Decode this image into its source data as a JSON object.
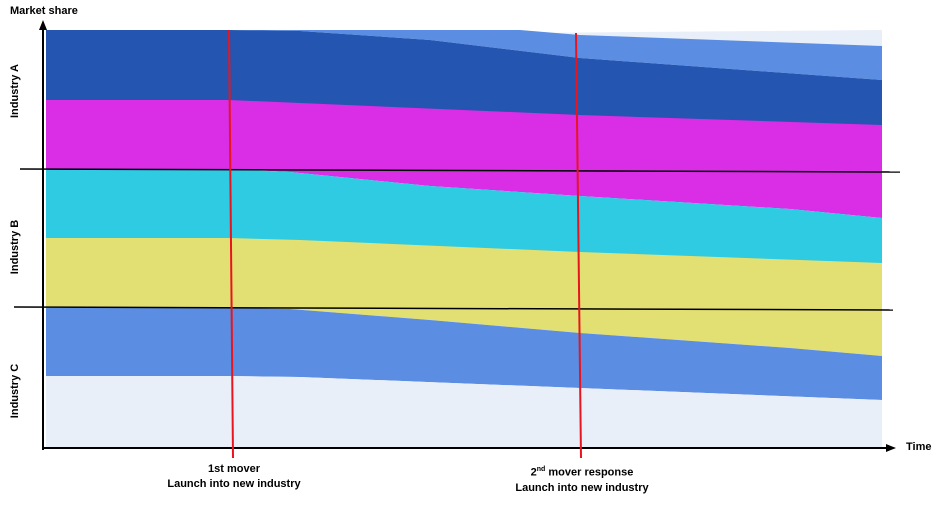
{
  "axes": {
    "y_title": "Market share",
    "x_title": "Time"
  },
  "industries": [
    {
      "label": "Industry A"
    },
    {
      "label": "Industry B"
    },
    {
      "label": "Industry C"
    }
  ],
  "markers": [
    {
      "line1": "1st mover",
      "line2": "Launch into new industry"
    },
    {
      "line1_pre": "2",
      "line1_sup": "nd",
      "line1_post": " mover response",
      "line2": "Launch into new industry"
    }
  ],
  "colors": {
    "pale_blue": "#E9EFF8",
    "mid_blue": "#5B8DE2",
    "dark_blue": "#2455B1",
    "magenta": "#DA2DE6",
    "cyan": "#2ECBE3",
    "yellow": "#E3E073",
    "marker_red": "#E8141E",
    "divider": "#000000"
  }
}
